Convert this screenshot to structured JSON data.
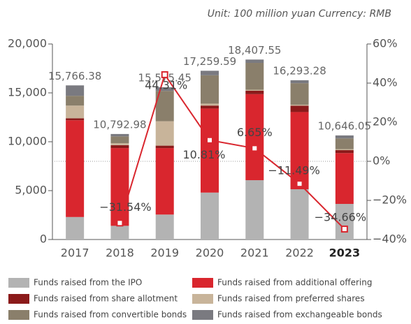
{
  "chart_data": {
    "type": "bar",
    "subtitle": "Unit: 100 million yuan   Currency: RMB",
    "stacked": true,
    "categories": [
      "2017",
      "2018",
      "2019",
      "2020",
      "2021",
      "2022",
      "2023"
    ],
    "series": [
      {
        "name": "Funds raised from the IPO",
        "color": "#b3b3b3",
        "values": [
          2300,
          1400,
          2550,
          4800,
          6070,
          5140,
          3640
        ]
      },
      {
        "name": "Funds raised from additional offering",
        "color": "#d9262e",
        "values": [
          9900,
          7950,
          6800,
          8600,
          8800,
          7900,
          5200
        ]
      },
      {
        "name": "Funds raised from share allotment",
        "color": "#8b1a1a",
        "values": [
          200,
          300,
          250,
          300,
          350,
          650,
          300
        ]
      },
      {
        "name": "Funds raised from preferred shares",
        "color": "#c8b49a",
        "values": [
          1300,
          200,
          2500,
          200,
          100,
          100,
          100
        ]
      },
      {
        "name": "Funds raised from convertible bonds",
        "color": "#8a7f6b",
        "values": [
          1000,
          700,
          3100,
          2900,
          2750,
          2200,
          1100
        ]
      },
      {
        "name": "Funds raised from exchangeable bonds",
        "color": "#7a7a80",
        "values": [
          1066,
          243,
          375,
          460,
          338,
          303,
          306
        ]
      }
    ],
    "totals": [
      15766.38,
      10792.98,
      15575.45,
      17259.59,
      18407.55,
      16293.28,
      10646.05
    ],
    "total_labels": [
      "15,766.38",
      "10,792.98",
      "15,575.45",
      "17,259.59",
      "18,407.55",
      "16,293.28",
      "10,646.05"
    ],
    "line": {
      "axis": "y2",
      "color": "#d9262e",
      "values": [
        null,
        -31.54,
        44.31,
        10.81,
        6.65,
        -11.49,
        -34.66
      ],
      "value_labels": [
        null,
        "−31.54%",
        "44.31%",
        "10.81%",
        "6.65%",
        "−11.49%",
        "−34.66%"
      ]
    },
    "ylim": [
      0,
      20000
    ],
    "yticks": [
      0,
      {
        "value": 5000,
        "label": "5,000"
      },
      {
        "value": 10000,
        "label": "10,000"
      },
      {
        "value": 15000,
        "label": "15,000"
      },
      {
        "value": 20000,
        "label": "20,000"
      }
    ],
    "y2lim": [
      -40,
      60
    ],
    "y2ticks": [
      {
        "value": -40,
        "label": "−40%"
      },
      {
        "value": -20,
        "label": "−20%"
      },
      {
        "value": 0,
        "label": "0%"
      },
      {
        "value": 20,
        "label": "20%"
      },
      {
        "value": 40,
        "label": "40%"
      },
      {
        "value": 60,
        "label": "60%"
      }
    ],
    "highlight_category": 6
  }
}
